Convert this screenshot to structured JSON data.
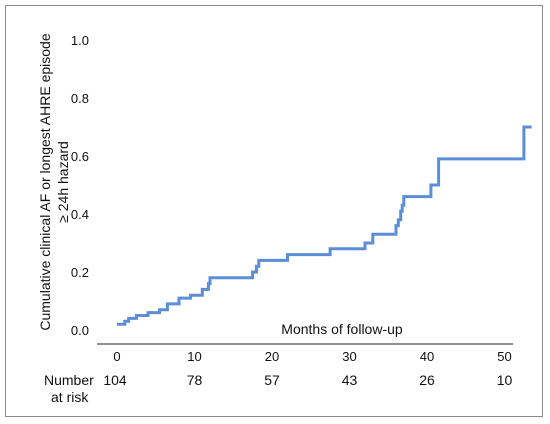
{
  "chart_data": {
    "type": "line",
    "step": true,
    "ylabel_line1": "Cumulative clinical AF or longest AHRE episode",
    "ylabel_line2": "≥ 24h hazard",
    "xlabel": "Months of follow-up",
    "xlim": [
      0,
      54
    ],
    "ylim": [
      0,
      1.0
    ],
    "x_ticks": [
      {
        "value": 0,
        "label": "0"
      },
      {
        "value": 10,
        "label": "10"
      },
      {
        "value": 20,
        "label": "20"
      },
      {
        "value": 30,
        "label": "30"
      },
      {
        "value": 40,
        "label": "40"
      },
      {
        "value": 50,
        "label": "50"
      }
    ],
    "y_ticks": [
      {
        "value": 0.0,
        "label": "0.0"
      },
      {
        "value": 0.2,
        "label": "0.2"
      },
      {
        "value": 0.4,
        "label": "0.4"
      },
      {
        "value": 0.6,
        "label": "0.6"
      },
      {
        "value": 0.8,
        "label": "0.8"
      },
      {
        "value": 1.0,
        "label": "1.0"
      }
    ],
    "grid": false,
    "series_color": "#5b8ed6",
    "points": [
      [
        0,
        0.02
      ],
      [
        1,
        0.02
      ],
      [
        1,
        0.03
      ],
      [
        1.5,
        0.03
      ],
      [
        1.5,
        0.04
      ],
      [
        2.5,
        0.04
      ],
      [
        2.5,
        0.05
      ],
      [
        4,
        0.05
      ],
      [
        4,
        0.06
      ],
      [
        5.5,
        0.06
      ],
      [
        5.5,
        0.07
      ],
      [
        6.5,
        0.07
      ],
      [
        6.5,
        0.09
      ],
      [
        8,
        0.09
      ],
      [
        8,
        0.11
      ],
      [
        9.5,
        0.11
      ],
      [
        9.5,
        0.12
      ],
      [
        11,
        0.12
      ],
      [
        11,
        0.14
      ],
      [
        11.8,
        0.14
      ],
      [
        11.8,
        0.16
      ],
      [
        12,
        0.16
      ],
      [
        12,
        0.18
      ],
      [
        17.5,
        0.18
      ],
      [
        17.5,
        0.2
      ],
      [
        18,
        0.2
      ],
      [
        18,
        0.22
      ],
      [
        18.3,
        0.22
      ],
      [
        18.3,
        0.24
      ],
      [
        22,
        0.24
      ],
      [
        22,
        0.26
      ],
      [
        27.5,
        0.26
      ],
      [
        27.5,
        0.28
      ],
      [
        32,
        0.28
      ],
      [
        32,
        0.3
      ],
      [
        33,
        0.3
      ],
      [
        33,
        0.33
      ],
      [
        36,
        0.33
      ],
      [
        36,
        0.36
      ],
      [
        36.3,
        0.36
      ],
      [
        36.3,
        0.38
      ],
      [
        36.6,
        0.38
      ],
      [
        36.6,
        0.41
      ],
      [
        36.8,
        0.41
      ],
      [
        36.8,
        0.43
      ],
      [
        37,
        0.43
      ],
      [
        37,
        0.46
      ],
      [
        40.5,
        0.46
      ],
      [
        40.5,
        0.5
      ],
      [
        41.5,
        0.5
      ],
      [
        41.5,
        0.59
      ],
      [
        52.5,
        0.59
      ],
      [
        52.5,
        0.7
      ],
      [
        53.5,
        0.7
      ]
    ],
    "at_risk": {
      "label_line1": "Number",
      "label_line2": "at risk",
      "entries": [
        {
          "x": 0,
          "n": "104"
        },
        {
          "x": 10,
          "n": "78"
        },
        {
          "x": 20,
          "n": "57"
        },
        {
          "x": 30,
          "n": "43"
        },
        {
          "x": 40,
          "n": "26"
        },
        {
          "x": 50,
          "n": "10"
        }
      ]
    }
  }
}
